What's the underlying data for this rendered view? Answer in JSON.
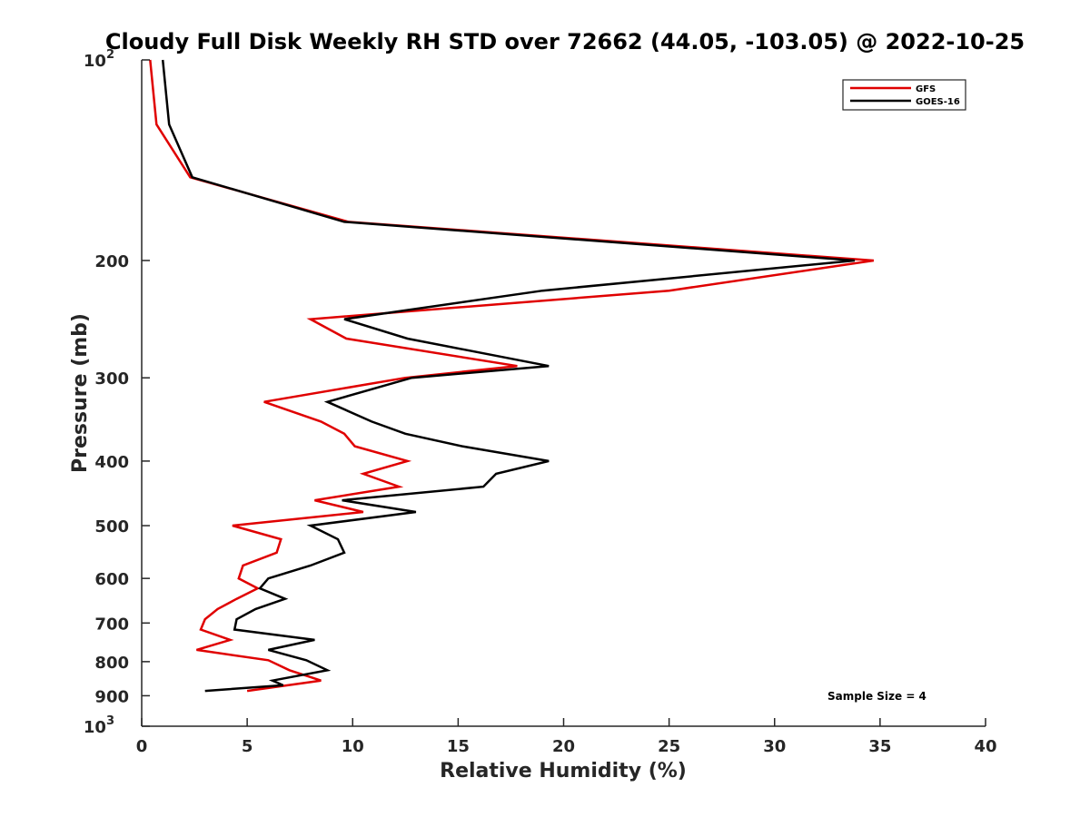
{
  "chart_data": {
    "type": "line",
    "title": "Cloudy Full Disk Weekly RH STD over 72662 (44.05, -103.05) @ 2022-10-25",
    "xlabel": "Relative Humidity (%)",
    "ylabel": "Pressure (mb)",
    "xlim": [
      0,
      40
    ],
    "ylim": [
      100,
      1000
    ],
    "y_scale": "log",
    "y_reversed": true,
    "x_ticks": [
      "0",
      "5",
      "10",
      "15",
      "20",
      "25",
      "30",
      "35",
      "40"
    ],
    "y_tick_labels": [
      {
        "value": 100,
        "base": "10",
        "exp": "2"
      },
      {
        "value": 200,
        "base": "200",
        "exp": ""
      },
      {
        "value": 300,
        "base": "300",
        "exp": ""
      },
      {
        "value": 400,
        "base": "400",
        "exp": ""
      },
      {
        "value": 500,
        "base": "500",
        "exp": ""
      },
      {
        "value": 600,
        "base": "600",
        "exp": ""
      },
      {
        "value": 700,
        "base": "700",
        "exp": ""
      },
      {
        "value": 800,
        "base": "800",
        "exp": ""
      },
      {
        "value": 900,
        "base": "900",
        "exp": ""
      },
      {
        "value": 1000,
        "base": "10",
        "exp": "3"
      }
    ],
    "grid": false,
    "legend_position": "top-right",
    "annotation": "Sample Size = 4",
    "series": [
      {
        "name": "GFS",
        "color": "#e00000",
        "points": [
          [
            0.4,
            100
          ],
          [
            0.7,
            125
          ],
          [
            2.3,
            150
          ],
          [
            9.8,
            175
          ],
          [
            34.7,
            200
          ],
          [
            25.0,
            222
          ],
          [
            8.0,
            245
          ],
          [
            9.7,
            262
          ],
          [
            17.8,
            288
          ],
          [
            12.5,
            300
          ],
          [
            5.8,
            326
          ],
          [
            8.5,
            349
          ],
          [
            9.6,
            364
          ],
          [
            10.1,
            380
          ],
          [
            12.6,
            400
          ],
          [
            10.5,
            418
          ],
          [
            12.2,
            437
          ],
          [
            8.2,
            458
          ],
          [
            10.5,
            477
          ],
          [
            4.3,
            500
          ],
          [
            6.6,
            524
          ],
          [
            6.4,
            549
          ],
          [
            4.8,
            574
          ],
          [
            4.6,
            600
          ],
          [
            5.5,
            621
          ],
          [
            4.5,
            644
          ],
          [
            3.6,
            667
          ],
          [
            3.0,
            691
          ],
          [
            2.8,
            716
          ],
          [
            4.2,
            742
          ],
          [
            2.6,
            768
          ],
          [
            6.0,
            796
          ],
          [
            7.0,
            824
          ],
          [
            8.5,
            854
          ],
          [
            5.0,
            885
          ]
        ]
      },
      {
        "name": "GOES-16",
        "color": "#000000",
        "points": [
          [
            1.0,
            100
          ],
          [
            1.3,
            125
          ],
          [
            2.4,
            150
          ],
          [
            9.6,
            175
          ],
          [
            33.8,
            200
          ],
          [
            19.0,
            222
          ],
          [
            9.6,
            245
          ],
          [
            12.6,
            262
          ],
          [
            19.3,
            288
          ],
          [
            12.8,
            300
          ],
          [
            8.8,
            326
          ],
          [
            10.9,
            349
          ],
          [
            12.5,
            364
          ],
          [
            15.2,
            380
          ],
          [
            19.3,
            400
          ],
          [
            16.8,
            418
          ],
          [
            16.2,
            437
          ],
          [
            9.5,
            458
          ],
          [
            13.0,
            477
          ],
          [
            8.0,
            500
          ],
          [
            9.3,
            524
          ],
          [
            9.6,
            549
          ],
          [
            8.0,
            574
          ],
          [
            6.0,
            600
          ],
          [
            5.6,
            621
          ],
          [
            6.8,
            644
          ],
          [
            5.4,
            667
          ],
          [
            4.5,
            691
          ],
          [
            4.4,
            716
          ],
          [
            8.2,
            742
          ],
          [
            6.0,
            768
          ],
          [
            7.8,
            796
          ],
          [
            8.8,
            824
          ],
          [
            6.2,
            854
          ],
          [
            6.7,
            868
          ],
          [
            3.0,
            885
          ]
        ]
      }
    ]
  }
}
